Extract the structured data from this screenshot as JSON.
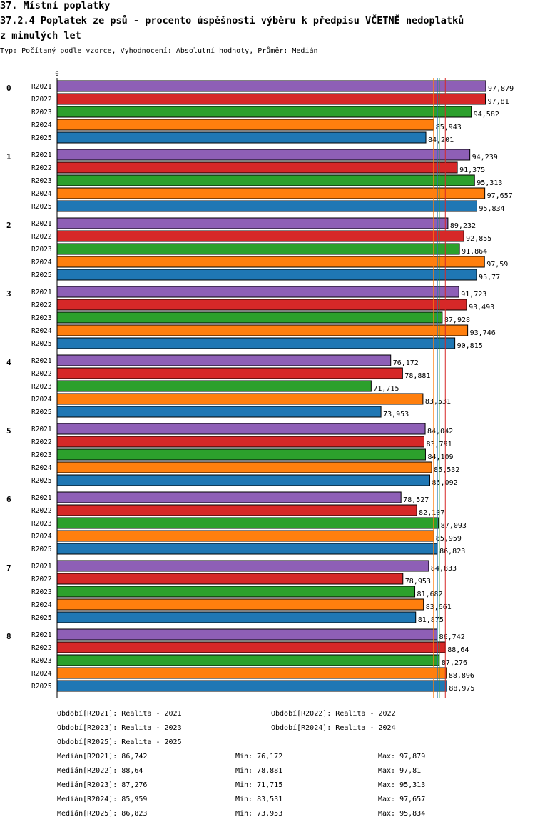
{
  "header": {
    "title_line1": "37. Místní poplatky",
    "title_line2": "37.2.4 Poplatek ze psů - procento úspěšnosti výběru k předpisu VČETNĚ nedoplatků",
    "title_line3": "z minulých let",
    "subtitle": "Typ: Počítaný podle vzorce, Vyhodnocení: Absolutní hodnoty, Průměr: Medián"
  },
  "colors": {
    "R2021": "#8e5fb6",
    "R2022": "#d62828",
    "R2023": "#2ca02c",
    "R2024": "#ff7f0e",
    "R2025": "#1f77b4"
  },
  "chart_data": {
    "type": "bar",
    "orientation": "horizontal",
    "axis_zero_label": "0",
    "xlim": [
      0,
      97.879
    ],
    "categories": [
      "0",
      "1",
      "2",
      "3",
      "4",
      "5",
      "6",
      "7",
      "8"
    ],
    "series": [
      {
        "name": "R2021",
        "values": [
          97.879,
          94.239,
          89.232,
          91.723,
          76.172,
          84.042,
          78.527,
          84.833,
          86.742
        ],
        "labels": [
          "97,879",
          "94,239",
          "89,232",
          "91,723",
          "76,172",
          "84,042",
          "78,527",
          "84,833",
          "86,742"
        ]
      },
      {
        "name": "R2022",
        "values": [
          97.81,
          91.375,
          92.855,
          93.493,
          78.881,
          83.791,
          82.107,
          78.953,
          88.64
        ],
        "labels": [
          "97,81",
          "91,375",
          "92,855",
          "93,493",
          "78,881",
          "83,791",
          "82,107",
          "78,953",
          "88,64"
        ]
      },
      {
        "name": "R2023",
        "values": [
          94.582,
          95.313,
          91.864,
          87.928,
          71.715,
          84.109,
          87.093,
          81.682,
          87.276
        ],
        "labels": [
          "94,582",
          "95,313",
          "91,864",
          "87,928",
          "71,715",
          "84,109",
          "87,093",
          "81,682",
          "87,276"
        ]
      },
      {
        "name": "R2024",
        "values": [
          85.943,
          97.657,
          97.59,
          93.746,
          83.531,
          85.532,
          85.959,
          83.661,
          88.896
        ],
        "labels": [
          "85,943",
          "97,657",
          "97,59",
          "93,746",
          "83,531",
          "85,532",
          "85,959",
          "83,661",
          "88,896"
        ]
      },
      {
        "name": "R2025",
        "values": [
          84.201,
          95.834,
          95.77,
          90.815,
          73.953,
          85.092,
          86.823,
          81.875,
          88.975
        ],
        "labels": [
          "84,201",
          "95,834",
          "95,77",
          "90,815",
          "73,953",
          "85,092",
          "86,823",
          "81,875",
          "88,975"
        ]
      }
    ],
    "medians": [
      {
        "series": "R2021",
        "value": 86.742
      },
      {
        "series": "R2022",
        "value": 88.64
      },
      {
        "series": "R2023",
        "value": 87.276
      },
      {
        "series": "R2024",
        "value": 85.959
      },
      {
        "series": "R2025",
        "value": 86.823
      }
    ]
  },
  "legend": {
    "periods": [
      "Období[R2021]: Realita - 2021",
      "Období[R2022]: Realita - 2022",
      "Období[R2023]: Realita - 2023",
      "Období[R2024]: Realita - 2024",
      "Období[R2025]: Realita - 2025"
    ],
    "stats": [
      {
        "median": "Medián[R2021]: 86,742",
        "min": "Min: 76,172",
        "max": "Max: 97,879"
      },
      {
        "median": "Medián[R2022]: 88,64",
        "min": "Min: 78,881",
        "max": "Max: 97,81"
      },
      {
        "median": "Medián[R2023]: 87,276",
        "min": "Min: 71,715",
        "max": "Max: 95,313"
      },
      {
        "median": "Medián[R2024]: 85,959",
        "min": "Min: 83,531",
        "max": "Max: 97,657"
      },
      {
        "median": "Medián[R2025]: 86,823",
        "min": "Min: 73,953",
        "max": "Max: 95,834"
      }
    ]
  }
}
